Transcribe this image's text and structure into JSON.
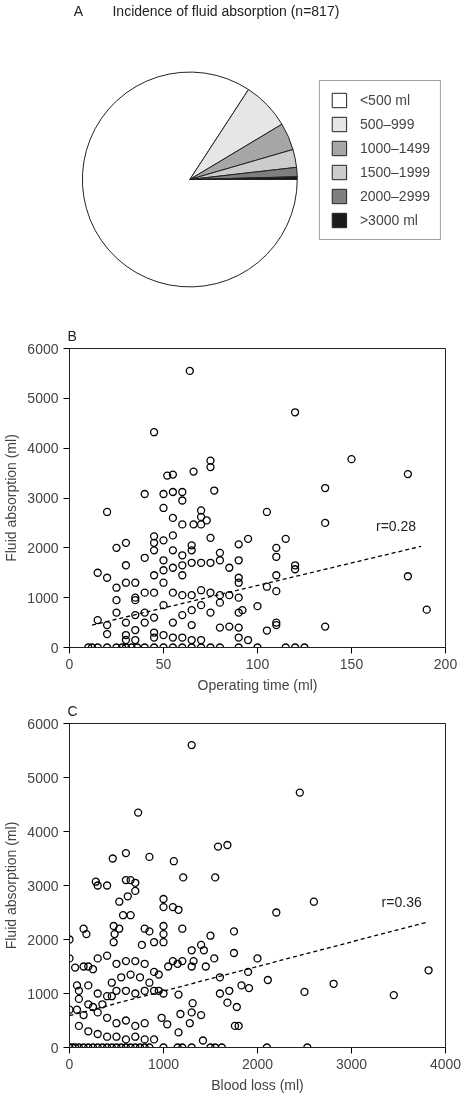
{
  "chart_data": [
    {
      "type": "pie",
      "title": "Incidence of fluid absorption (n=817)",
      "annotations": [
        "A"
      ],
      "legend": "right",
      "categories": [
        "<500 ml",
        "500–999",
        "1000–1499",
        "1500–1999",
        "2000–2999",
        ">3000 ml"
      ],
      "values": [
        84.2,
        7.2,
        4.1,
        2.7,
        1.4,
        0.4
      ],
      "colors": [
        "#ffffff",
        "#e6e6e6",
        "#a6a6a6",
        "#cccccc",
        "#7f7f7f",
        "#1a1a1a"
      ]
    },
    {
      "type": "scatter",
      "xlabel": "Operating time (ml)",
      "ylabel": "Fluid absorption (ml)",
      "annotations": [
        "B",
        "r=0.28"
      ],
      "xlim": [
        0,
        200
      ],
      "ylim": [
        0,
        6000
      ],
      "xticks": [
        0,
        50,
        100,
        150,
        200
      ],
      "yticks": [
        0,
        1000,
        2000,
        3000,
        4000,
        5000,
        6000
      ],
      "grid": false,
      "marker": "circle",
      "series": [
        {
          "color": "#000000",
          "x": [
            64,
            120,
            45,
            150,
            180,
            136,
            136,
            105,
            20,
            75,
            75,
            66,
            77,
            52,
            55,
            40,
            50,
            55,
            60,
            60,
            50,
            55,
            60,
            66,
            70,
            70,
            70,
            73,
            75,
            45,
            45,
            50,
            55,
            25,
            30,
            90,
            95,
            115,
            110,
            110,
            120,
            120,
            180,
            190,
            136,
            110,
            110,
            105,
            100,
            105,
            110,
            110,
            95,
            100,
            115,
            120,
            125,
            15,
            20,
            30,
            40,
            45,
            55,
            60,
            65,
            65,
            80,
            80,
            85,
            90,
            90,
            90,
            75,
            70,
            65,
            60,
            55,
            50,
            50,
            45,
            35,
            30,
            25,
            25,
            25,
            20,
            15,
            20,
            30,
            30,
            35,
            35,
            40,
            45,
            50,
            55,
            60,
            65,
            70,
            75,
            80,
            85,
            90,
            90,
            90,
            90,
            92,
            80,
            85,
            75,
            70,
            65,
            65,
            60,
            55,
            50,
            45,
            40,
            40,
            35,
            45,
            50,
            55,
            60,
            70,
            65,
            45,
            35,
            30,
            80,
            35,
            60,
            10,
            12,
            15,
            20,
            25,
            28,
            30,
            33,
            36,
            40,
            45,
            50,
            55,
            60,
            65,
            70,
            75,
            80,
            90
          ],
          "values": [
            5550,
            4720,
            4320,
            3780,
            3480,
            3200,
            2500,
            2720,
            2720,
            3750,
            3620,
            3530,
            3150,
            3450,
            3470,
            3080,
            3080,
            3120,
            3120,
            2950,
            2800,
            2600,
            2470,
            2470,
            2470,
            2620,
            2750,
            2550,
            2200,
            2230,
            2100,
            2150,
            2250,
            2000,
            2100,
            2070,
            2180,
            2180,
            2000,
            1820,
            1650,
            1570,
            1430,
            760,
            420,
            1450,
            1130,
            1220,
            830,
            340,
            500,
            450,
            150,
            0,
            0,
            0,
            0,
            1500,
            1400,
            1650,
            1800,
            1950,
            1950,
            1850,
            2050,
            1950,
            1900,
            1750,
            1600,
            1750,
            1400,
            1300,
            1700,
            1700,
            1700,
            1650,
            1600,
            1550,
            1750,
            1450,
            1300,
            1300,
            1200,
            950,
            700,
            450,
            550,
            270,
            500,
            250,
            350,
            950,
            1100,
            1100,
            1300,
            1100,
            1050,
            1050,
            1150,
            1100,
            1050,
            1050,
            1000,
            700,
            400,
            200,
            750,
            400,
            420,
            700,
            850,
            750,
            450,
            650,
            500,
            850,
            600,
            700,
            500,
            650,
            300,
            250,
            200,
            200,
            150,
            150,
            200,
            150,
            150,
            900,
            1000,
            1450,
            0,
            0,
            0,
            0,
            0,
            0,
            0,
            0,
            0,
            0,
            0,
            0,
            0,
            0,
            0,
            0,
            0,
            0,
            0
          ]
        },
        {
          "type": "line",
          "line_style": "dashed",
          "marker": "none",
          "color": "#000000",
          "x": [
            12,
            187
          ],
          "values": [
            450,
            2030
          ]
        }
      ]
    },
    {
      "type": "scatter",
      "xlabel": "Blood loss (ml)",
      "ylabel": "Fluid absorption (ml)",
      "annotations": [
        "C",
        "r=0.36"
      ],
      "xlim": [
        0,
        4000
      ],
      "ylim": [
        0,
        6000
      ],
      "xticks": [
        0,
        1000,
        2000,
        3000,
        4000
      ],
      "yticks": [
        0,
        1000,
        2000,
        3000,
        4000,
        5000,
        6000
      ],
      "grid": false,
      "marker": "circle",
      "series": [
        {
          "color": "#000000",
          "x": [
            1300,
            2450,
            730,
            1680,
            1580,
            460,
            600,
            850,
            1110,
            1210,
            1550,
            280,
            300,
            400,
            600,
            650,
            700,
            700,
            620,
            530,
            570,
            650,
            1000,
            1000,
            1100,
            1160,
            2200,
            2600,
            150,
            180,
            470,
            480,
            530,
            470,
            800,
            850,
            770,
            900,
            1000,
            1000,
            1000,
            1200,
            1500,
            1750,
            1300,
            1400,
            1430,
            1750,
            2000,
            3820,
            2810,
            2500,
            3450,
            2110,
            1600,
            1830,
            1910,
            1900,
            1700,
            1600,
            1680,
            1780,
            1760,
            1800,
            1400,
            1280,
            1300,
            1310,
            1180,
            1160,
            1160,
            1040,
            980,
            1050,
            1100,
            1150,
            1200,
            1300,
            1320,
            1450,
            1540,
            1420,
            0,
            0,
            60,
            150,
            200,
            250,
            80,
            0,
            80,
            200,
            300,
            400,
            500,
            600,
            700,
            800,
            900,
            950,
            300,
            400,
            450,
            500,
            600,
            700,
            800,
            900,
            100,
            200,
            300,
            400,
            500,
            600,
            700,
            800,
            100,
            200,
            300,
            400,
            500,
            600,
            700,
            800,
            900,
            150,
            250,
            350,
            450,
            550,
            650,
            750,
            850,
            950,
            1000,
            100,
            0,
            30,
            60,
            100,
            150,
            200,
            250,
            300,
            350,
            400,
            450,
            500,
            550,
            600,
            650,
            700,
            750,
            800,
            850,
            1000,
            1150,
            1200,
            1300,
            1500,
            1550,
            1620,
            2100,
            2530
          ],
          "values": [
            5600,
            4720,
            4350,
            3750,
            3720,
            3500,
            3600,
            3530,
            3450,
            3150,
            3150,
            3070,
            3000,
            3000,
            3100,
            3100,
            3050,
            2900,
            2800,
            2700,
            2450,
            2450,
            2750,
            2600,
            2600,
            2550,
            2500,
            2700,
            2200,
            2100,
            2250,
            2100,
            2200,
            1950,
            2200,
            2150,
            1900,
            1950,
            2250,
            2100,
            1950,
            2200,
            2070,
            2150,
            1800,
            1900,
            1800,
            1750,
            1650,
            1430,
            1180,
            1030,
            970,
            1250,
            1300,
            1150,
            1100,
            1400,
            1050,
            1000,
            830,
            750,
            400,
            400,
            600,
            450,
            650,
            820,
            620,
            980,
            280,
            430,
            550,
            1500,
            1600,
            1550,
            1600,
            1500,
            1600,
            1500,
            1650,
            130,
            2000,
            1650,
            1480,
            1500,
            1500,
            1450,
            1150,
            700,
            700,
            1150,
            1650,
            1700,
            1550,
            1600,
            1600,
            1550,
            1400,
            1350,
            1000,
            950,
            950,
            1050,
            1050,
            1000,
            1050,
            1050,
            900,
            800,
            650,
            550,
            450,
            500,
            400,
            450,
            400,
            300,
            250,
            200,
            200,
            150,
            200,
            150,
            150,
            600,
            750,
            800,
            1200,
            1300,
            1350,
            1300,
            1200,
            1050,
            1000,
            1050,
            0,
            0,
            0,
            0,
            0,
            0,
            0,
            0,
            0,
            0,
            0,
            0,
            0,
            0,
            0,
            0,
            0,
            0,
            0,
            0,
            0,
            0,
            0,
            0,
            0,
            0,
            0,
            0
          ]
        },
        {
          "type": "line",
          "line_style": "dashed",
          "marker": "none",
          "color": "#000000",
          "x": [
            0,
            3800
          ],
          "values": [
            590,
            2320
          ]
        }
      ]
    }
  ]
}
